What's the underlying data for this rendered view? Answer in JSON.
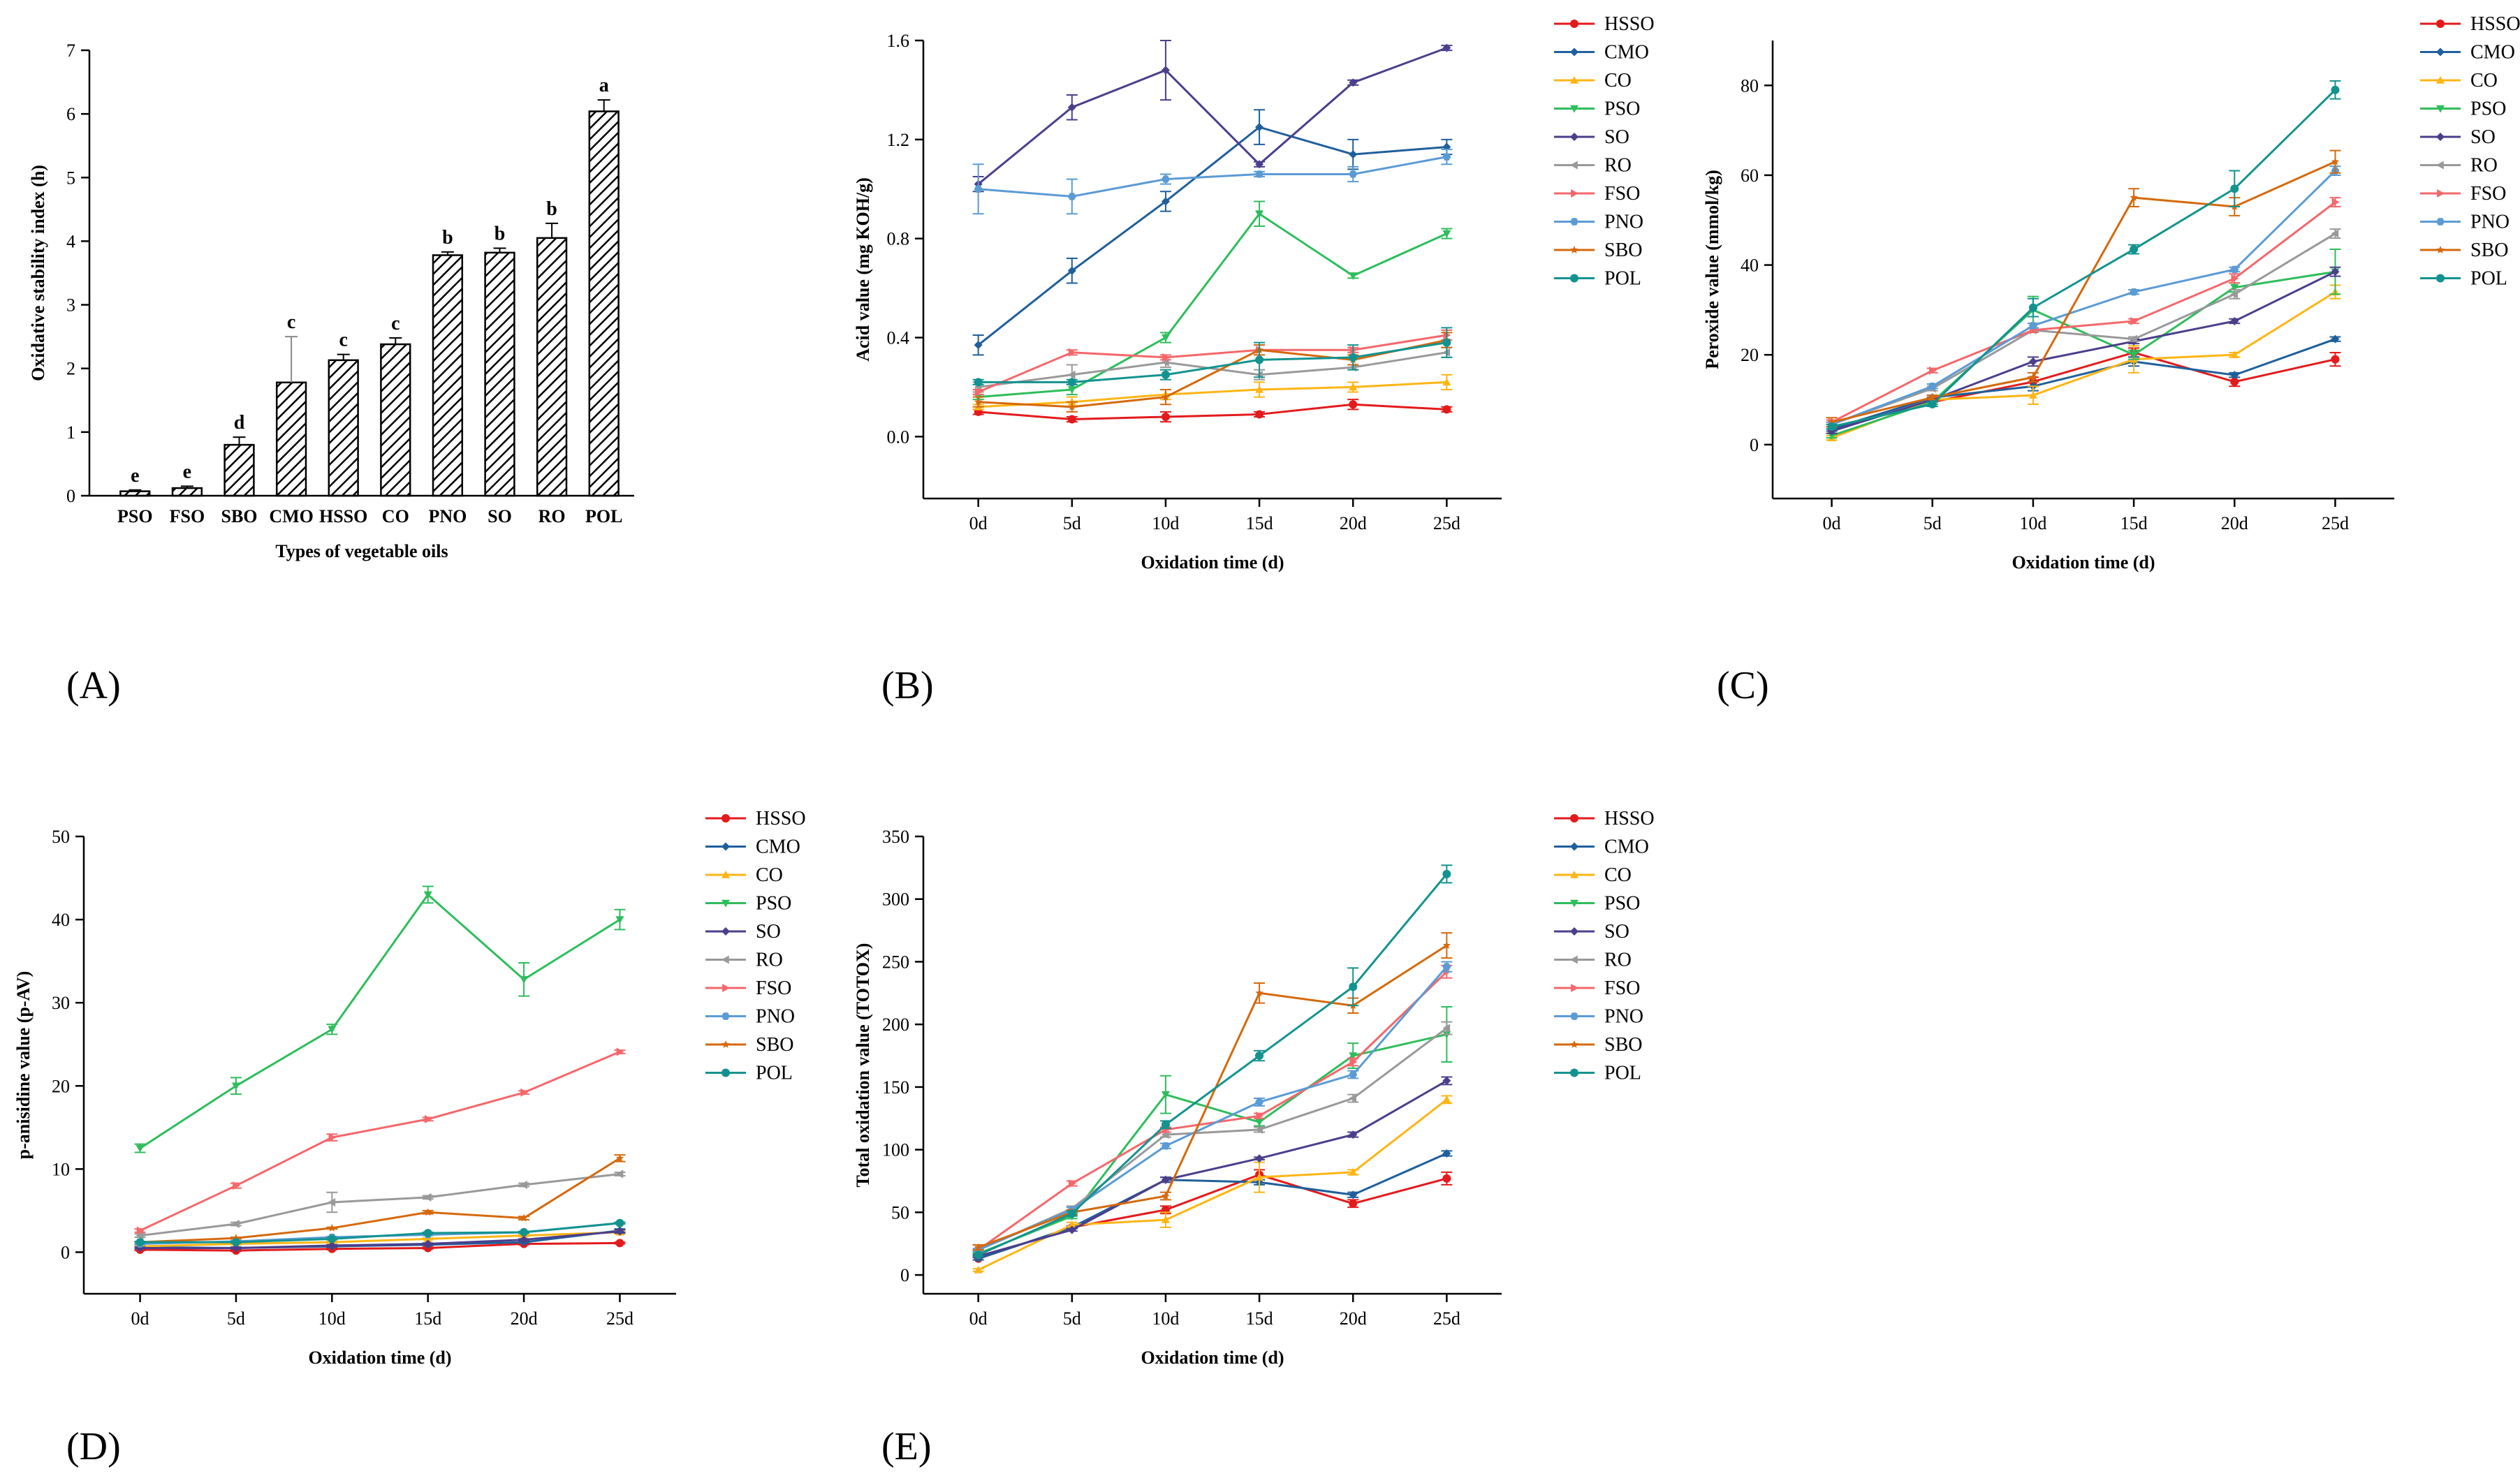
{
  "colors": {
    "HSSO": "#e31a1c",
    "CMO": "#1f5f9b",
    "CO": "#fdb515",
    "PSO": "#2ebd5b",
    "SO": "#4b3f8c",
    "RO": "#999999",
    "FSO": "#f4676b",
    "PNO": "#5b9bd5",
    "SBO": "#d5690c",
    "POL": "#13938f",
    "axis": "#000000",
    "bar_edge": "#000000",
    "err_gray": "#888888"
  },
  "chart_data": [
    {
      "id": "A",
      "panel_label": "(A)",
      "type": "bar",
      "xlabel": "Types of vegetable oils",
      "ylabel": "Oxidative stability index (h)",
      "ylim": [
        0,
        7
      ],
      "yticks": [
        "0",
        "1",
        "2",
        "3",
        "4",
        "5",
        "6",
        "7"
      ],
      "categories": [
        "PSO",
        "FSO",
        "SBO",
        "CMO",
        "HSSO",
        "CO",
        "PNO",
        "SO",
        "RO",
        "POL"
      ],
      "values": [
        0.07,
        0.12,
        0.8,
        1.78,
        2.13,
        2.38,
        3.78,
        3.82,
        4.05,
        6.04
      ],
      "errors": [
        0.02,
        0.03,
        0.12,
        0.72,
        0.09,
        0.1,
        0.05,
        0.07,
        0.23,
        0.18
      ],
      "letters": [
        "e",
        "e",
        "d",
        "c",
        "c",
        "c",
        "b",
        "b",
        "b",
        "a"
      ]
    },
    {
      "id": "B",
      "panel_label": "(B)",
      "type": "line",
      "xlabel": "Oxidation time (d)",
      "ylabel": "Acid value (mg KOH/g)",
      "ylim": [
        -0.25,
        1.6
      ],
      "yticks": [
        "0.0",
        "0.4",
        "0.8",
        "1.2",
        "1.6"
      ],
      "yticks_values": [
        0,
        0.4,
        0.8,
        1.2,
        1.6
      ],
      "x": [
        "0d",
        "5d",
        "10d",
        "15d",
        "20d",
        "25d"
      ],
      "series": [
        {
          "name": "HSSO",
          "values": [
            0.1,
            0.07,
            0.08,
            0.09,
            0.13,
            0.11
          ],
          "errors": [
            0.01,
            0.01,
            0.02,
            0.01,
            0.02,
            0.01
          ]
        },
        {
          "name": "CMO",
          "values": [
            0.37,
            0.67,
            0.95,
            1.25,
            1.14,
            1.17
          ],
          "errors": [
            0.04,
            0.05,
            0.04,
            0.07,
            0.06,
            0.03
          ]
        },
        {
          "name": "CO",
          "values": [
            0.12,
            0.14,
            0.17,
            0.19,
            0.2,
            0.22
          ],
          "errors": [
            0.01,
            0.02,
            0.02,
            0.03,
            0.02,
            0.03
          ]
        },
        {
          "name": "PSO",
          "values": [
            0.16,
            0.19,
            0.4,
            0.9,
            0.65,
            0.82
          ],
          "errors": [
            0.01,
            0.02,
            0.02,
            0.05,
            0.01,
            0.02
          ]
        },
        {
          "name": "SO",
          "values": [
            1.02,
            1.33,
            1.48,
            1.1,
            1.43,
            1.57
          ],
          "errors": [
            0.03,
            0.05,
            0.12,
            0.01,
            0.01,
            0.01
          ]
        },
        {
          "name": "RO",
          "values": [
            0.2,
            0.25,
            0.3,
            0.25,
            0.28,
            0.34
          ],
          "errors": [
            0.02,
            0.04,
            0.02,
            0.02,
            0.01,
            0.02
          ]
        },
        {
          "name": "FSO",
          "values": [
            0.18,
            0.34,
            0.32,
            0.35,
            0.35,
            0.41
          ],
          "errors": [
            0.01,
            0.01,
            0.01,
            0.02,
            0.01,
            0.02
          ]
        },
        {
          "name": "PNO",
          "values": [
            1.0,
            0.97,
            1.04,
            1.06,
            1.06,
            1.13
          ],
          "errors": [
            0.1,
            0.07,
            0.02,
            0.01,
            0.03,
            0.03
          ]
        },
        {
          "name": "SBO",
          "values": [
            0.14,
            0.12,
            0.16,
            0.35,
            0.31,
            0.39
          ],
          "errors": [
            0.02,
            0.02,
            0.03,
            0.02,
            0.02,
            0.03
          ]
        },
        {
          "name": "POL",
          "values": [
            0.22,
            0.22,
            0.25,
            0.31,
            0.32,
            0.38
          ],
          "errors": [
            0.01,
            0.01,
            0.02,
            0.07,
            0.05,
            0.06
          ]
        }
      ]
    },
    {
      "id": "C",
      "panel_label": "(C)",
      "type": "line",
      "xlabel": "Oxidation time (d)",
      "ylabel": "Peroxide value (mmol/kg)",
      "ylim": [
        -12,
        90
      ],
      "yticks": [
        "0",
        "20",
        "40",
        "60",
        "80"
      ],
      "yticks_values": [
        0,
        20,
        40,
        60,
        80
      ],
      "x": [
        "0d",
        "5d",
        "10d",
        "15d",
        "20d",
        "25d"
      ],
      "series": [
        {
          "name": "HSSO",
          "values": [
            3.5,
            9.5,
            14,
            20.5,
            14,
            19
          ],
          "errors": [
            0.5,
            0.5,
            1,
            1,
            1,
            1.5
          ]
        },
        {
          "name": "CMO",
          "values": [
            3.5,
            10.5,
            13,
            18.5,
            15.5,
            23.5
          ],
          "errors": [
            0.5,
            0.5,
            1,
            1,
            0.5,
            0.5
          ]
        },
        {
          "name": "CO",
          "values": [
            1.5,
            10,
            11,
            19,
            20,
            34
          ],
          "errors": [
            0.5,
            0.5,
            2,
            3,
            0.5,
            1.5
          ]
        },
        {
          "name": "PSO",
          "values": [
            2,
            9.5,
            30,
            20,
            35,
            38.5
          ],
          "errors": [
            0.5,
            0.5,
            3,
            1,
            1,
            5
          ]
        },
        {
          "name": "SO",
          "values": [
            3,
            10,
            18.5,
            23,
            27.5,
            38.5
          ],
          "errors": [
            0.5,
            0.5,
            1,
            0.5,
            0.5,
            1
          ]
        },
        {
          "name": "RO",
          "values": [
            4.5,
            12.5,
            25.5,
            23.5,
            33.5,
            47
          ],
          "errors": [
            0.5,
            0.5,
            0.5,
            0.5,
            1,
            1
          ]
        },
        {
          "name": "FSO",
          "values": [
            5,
            16.5,
            25.5,
            27.5,
            37,
            54
          ],
          "errors": [
            0.5,
            0.5,
            0.5,
            0.5,
            1,
            1
          ]
        },
        {
          "name": "PNO",
          "values": [
            4.5,
            13,
            26.5,
            34,
            39,
            61
          ],
          "errors": [
            0.5,
            0.5,
            0.5,
            0.5,
            0.5,
            1
          ]
        },
        {
          "name": "SBO",
          "values": [
            5,
            10.5,
            15,
            55,
            53,
            63
          ],
          "errors": [
            1,
            0.5,
            1,
            2,
            2,
            2.5
          ]
        },
        {
          "name": "POL",
          "values": [
            4,
            9,
            30.5,
            43.5,
            57,
            79
          ],
          "errors": [
            0.5,
            0.5,
            2,
            1,
            4,
            2
          ]
        }
      ]
    },
    {
      "id": "D",
      "panel_label": "(D)",
      "type": "line",
      "xlabel": "Oxidation time (d)",
      "ylabel": "p-anisidine value (p-AV)",
      "ylim": [
        -5,
        50
      ],
      "yticks": [
        "0",
        "10",
        "20",
        "30",
        "40",
        "50"
      ],
      "yticks_values": [
        0,
        10,
        20,
        30,
        40,
        50
      ],
      "x": [
        "0d",
        "5d",
        "10d",
        "15d",
        "20d",
        "25d"
      ],
      "series": [
        {
          "name": "HSSO",
          "values": [
            0.3,
            0.2,
            0.4,
            0.5,
            1,
            1.1
          ],
          "errors": [
            0.1,
            0.1,
            0.1,
            0.1,
            0.1,
            0.1
          ]
        },
        {
          "name": "CMO",
          "values": [
            0.6,
            0.5,
            0.7,
            0.9,
            1.2,
            2.6
          ],
          "errors": [
            0.1,
            0.1,
            0.1,
            0.1,
            0.1,
            0.2
          ]
        },
        {
          "name": "CO",
          "values": [
            0.7,
            1,
            1.2,
            1.6,
            2,
            2.4
          ],
          "errors": [
            0.1,
            0.1,
            0.1,
            0.1,
            0.1,
            0.2
          ]
        },
        {
          "name": "PSO",
          "values": [
            12.5,
            20,
            26.8,
            43,
            32.8,
            40
          ],
          "errors": [
            0.5,
            1,
            0.6,
            1,
            2,
            1.2
          ]
        },
        {
          "name": "SO",
          "values": [
            0.5,
            0.5,
            0.8,
            1,
            1.5,
            2.5
          ],
          "errors": [
            0.1,
            0.1,
            0.1,
            0.1,
            0.1,
            0.2
          ]
        },
        {
          "name": "RO",
          "values": [
            2,
            3.4,
            6,
            6.6,
            8.1,
            9.4
          ],
          "errors": [
            0.2,
            0.2,
            1.2,
            0.2,
            0.2,
            0.2
          ]
        },
        {
          "name": "FSO",
          "values": [
            2.6,
            8,
            13.8,
            16,
            19.2,
            24.1
          ],
          "errors": [
            0.2,
            0.3,
            0.4,
            0.2,
            0.2,
            0.2
          ]
        },
        {
          "name": "PNO",
          "values": [
            1,
            1.3,
            1.8,
            2.1,
            2.4,
            3.5
          ],
          "errors": [
            0.1,
            0.1,
            0.1,
            0.1,
            0.1,
            0.1
          ]
        },
        {
          "name": "SBO",
          "values": [
            1.2,
            1.7,
            2.9,
            4.8,
            4.1,
            11.3
          ],
          "errors": [
            0.1,
            0.1,
            0.1,
            0.2,
            0.2,
            0.4
          ]
        },
        {
          "name": "POL",
          "values": [
            1.2,
            1.2,
            1.6,
            2.3,
            2.4,
            3.5
          ],
          "errors": [
            0.1,
            0.1,
            0.1,
            0.1,
            0.1,
            0.1
          ]
        }
      ]
    },
    {
      "id": "E",
      "panel_label": "(E)",
      "type": "line",
      "xlabel": "Oxidation time (d)",
      "ylabel": "Total oxidation value (TOTOX)",
      "ylim": [
        -15,
        350
      ],
      "yticks": [
        "0",
        "50",
        "100",
        "150",
        "200",
        "250",
        "300",
        "350"
      ],
      "yticks_values": [
        0,
        50,
        100,
        150,
        200,
        250,
        300,
        350
      ],
      "x": [
        "0d",
        "5d",
        "10d",
        "15d",
        "20d",
        "25d"
      ],
      "series": [
        {
          "name": "HSSO",
          "values": [
            13,
            38,
            52,
            80,
            57,
            77
          ],
          "errors": [
            1,
            1,
            3,
            4,
            3,
            5
          ]
        },
        {
          "name": "CMO",
          "values": [
            13,
            38,
            76,
            74,
            64,
            97
          ],
          "errors": [
            1,
            1,
            2,
            2,
            2,
            2
          ]
        },
        {
          "name": "CO",
          "values": [
            4,
            40,
            44,
            78,
            82,
            140
          ],
          "errors": [
            1,
            2,
            6,
            12,
            2,
            3
          ]
        },
        {
          "name": "PSO",
          "values": [
            17,
            47,
            144,
            122,
            175,
            192
          ],
          "errors": [
            1,
            2,
            15,
            3,
            10,
            22
          ]
        },
        {
          "name": "SO",
          "values": [
            15,
            36,
            76,
            93,
            112,
            155
          ],
          "errors": [
            1,
            1,
            2,
            1,
            2,
            3
          ]
        },
        {
          "name": "RO",
          "values": [
            20,
            53,
            112,
            116,
            141,
            197
          ],
          "errors": [
            1,
            2,
            2,
            2,
            3,
            5
          ]
        },
        {
          "name": "FSO",
          "values": [
            20,
            73,
            116,
            127,
            170,
            242
          ],
          "errors": [
            1,
            2,
            2,
            2,
            3,
            5
          ]
        },
        {
          "name": "PNO",
          "values": [
            20,
            52,
            103,
            138,
            160,
            246
          ],
          "errors": [
            1,
            2,
            2,
            3,
            3,
            4
          ]
        },
        {
          "name": "SBO",
          "values": [
            22,
            50,
            63,
            225,
            215,
            263
          ],
          "errors": [
            2,
            2,
            3,
            8,
            6,
            10
          ]
        },
        {
          "name": "POL",
          "values": [
            16,
            49,
            120,
            175,
            230,
            320
          ],
          "errors": [
            1,
            2,
            3,
            4,
            15,
            7
          ]
        }
      ]
    }
  ]
}
